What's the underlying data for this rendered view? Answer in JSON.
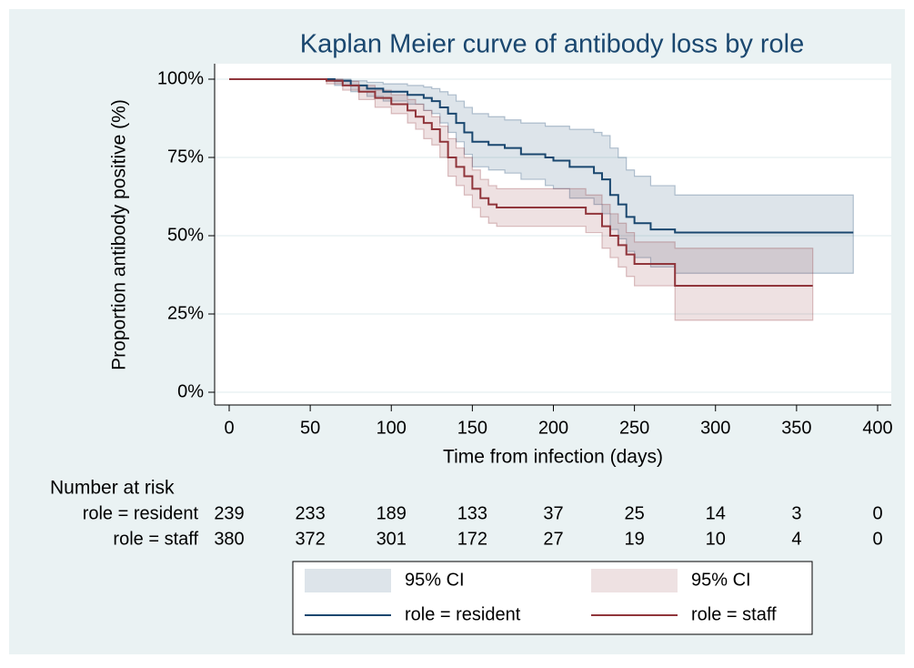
{
  "chart_data": {
    "type": "km",
    "title": "Kaplan Meier curve of antibody loss by role",
    "x_label": "Time from infection (days)",
    "y_label": "Proportion antibody positive (%)",
    "xlim": [
      0,
      400
    ],
    "xticks": [
      0,
      50,
      100,
      150,
      200,
      250,
      300,
      350,
      400
    ],
    "ylim": [
      0,
      100
    ],
    "yticks": [
      {
        "value": 0,
        "label": "0%"
      },
      {
        "value": 25,
        "label": "25%"
      },
      {
        "value": 50,
        "label": "50%"
      },
      {
        "value": 75,
        "label": "75%"
      },
      {
        "value": 100,
        "label": "100%"
      }
    ],
    "grid": true,
    "series": [
      {
        "name": "role = resident",
        "ci_label": "95% CI",
        "color": "#1a476f",
        "x": [
          0,
          65,
          75,
          85,
          95,
          110,
          120,
          125,
          130,
          135,
          140,
          145,
          150,
          160,
          170,
          180,
          195,
          200,
          210,
          225,
          230,
          235,
          240,
          245,
          250,
          260,
          275,
          385
        ],
        "values": [
          100,
          99.5,
          98,
          97,
          96,
          95,
          94,
          93,
          91,
          89,
          86,
          83,
          80,
          79,
          78,
          76,
          75,
          74,
          72,
          70,
          68,
          63,
          60,
          56,
          54,
          52,
          51,
          51
        ],
        "upper": [
          100,
          100,
          99.5,
          99,
          98.5,
          98,
          97.5,
          97,
          96,
          95,
          93,
          91,
          89,
          88,
          87,
          86,
          85,
          85,
          84,
          83,
          82,
          78,
          75,
          71,
          69,
          66,
          63,
          63
        ],
        "lower": [
          100,
          98,
          96,
          94.5,
          93,
          92,
          90,
          89,
          86,
          83,
          80,
          76,
          72,
          71,
          70,
          68,
          66,
          65,
          62,
          60,
          57,
          52,
          49,
          45,
          43,
          40,
          38,
          38
        ]
      },
      {
        "name": "role = staff",
        "ci_label": "95% CI",
        "color": "#90353b",
        "x": [
          0,
          60,
          70,
          80,
          90,
          100,
          110,
          115,
          120,
          125,
          130,
          135,
          140,
          145,
          150,
          155,
          160,
          165,
          215,
          220,
          230,
          235,
          240,
          245,
          250,
          260,
          275,
          360
        ],
        "values": [
          100,
          99.5,
          98,
          96,
          94,
          92,
          90,
          88,
          86,
          84,
          80,
          75,
          72,
          69,
          65,
          62,
          60,
          59,
          59,
          57,
          53,
          50,
          47,
          44,
          41,
          41,
          34,
          34
        ],
        "upper": [
          100,
          100,
          99.3,
          98,
          96.5,
          95,
          93.5,
          92,
          90,
          88,
          85,
          81,
          78,
          75,
          71,
          68,
          66,
          65,
          65,
          63,
          60,
          57,
          54,
          51,
          48,
          48,
          46,
          46
        ],
        "lower": [
          100,
          98.5,
          96.5,
          93.5,
          91,
          89,
          86,
          84,
          81,
          79,
          75,
          69,
          66,
          63,
          59,
          56,
          54,
          53,
          53,
          51,
          46,
          43,
          40,
          37,
          34,
          34,
          23,
          23
        ]
      }
    ],
    "risk_table": {
      "title": "Number at risk",
      "rows": [
        {
          "label": "role = resident",
          "counts": [
            "239",
            "233",
            "189",
            "133",
            "37",
            "25",
            "14",
            "3",
            "0"
          ]
        },
        {
          "label": "role = staff",
          "counts": [
            "380",
            "372",
            "301",
            "172",
            "27",
            "19",
            "10",
            "4",
            "0"
          ]
        }
      ]
    }
  }
}
